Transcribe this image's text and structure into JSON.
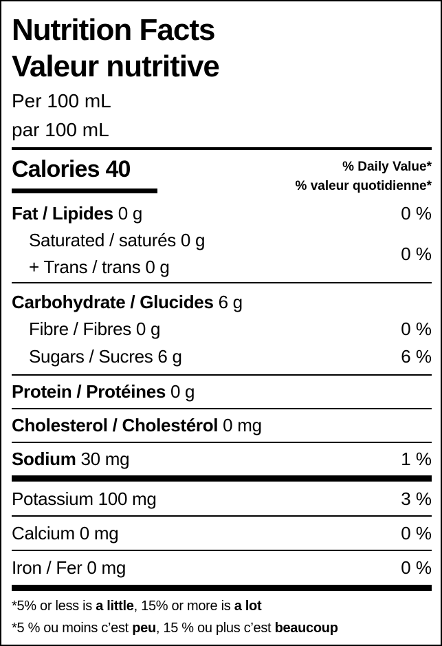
{
  "title_en": "Nutrition Facts",
  "title_fr": "Valeur nutritive",
  "serving_en": "Per 100 mL",
  "serving_fr": "par 100 mL",
  "calories_label": "Calories",
  "calories_value": "40",
  "dv_header_en": "% Daily Value*",
  "dv_header_fr": "% valeur quotidienne*",
  "rows": {
    "fat": {
      "label": "Fat / Lipides",
      "amount": "0 g",
      "dv": "0 %"
    },
    "saturated": {
      "label": "Saturated / saturés",
      "amount": "0 g"
    },
    "trans": {
      "label": "+ Trans / trans",
      "amount": "0 g"
    },
    "sat_trans_dv": "0 %",
    "carb": {
      "label": "Carbohydrate / Glucides",
      "amount": "6 g"
    },
    "fibre": {
      "label": "Fibre / Fibres",
      "amount": "0 g",
      "dv": "0 %"
    },
    "sugars": {
      "label": "Sugars / Sucres",
      "amount": "6 g",
      "dv": "6 %"
    },
    "protein": {
      "label": "Protein / Protéines",
      "amount": "0 g"
    },
    "cholesterol": {
      "label": "Cholesterol / Cholestérol",
      "amount": "0 mg"
    },
    "sodium": {
      "label": "Sodium",
      "amount": "30 mg",
      "dv": "1 %"
    },
    "potassium": {
      "label": "Potassium",
      "amount": "100 mg",
      "dv": "3 %"
    },
    "calcium": {
      "label": "Calcium",
      "amount": "0 mg",
      "dv": "0 %"
    },
    "iron": {
      "label": "Iron / Fer",
      "amount": "0 mg",
      "dv": "0 %"
    }
  },
  "footnote": {
    "en_1": "*5% or less is ",
    "en_2": "a little",
    "en_3": ", 15% or more is ",
    "en_4": "a lot",
    "fr_1": "*5 % ou moins c’est ",
    "fr_2": "peu",
    "fr_3": ", 15 % ou plus c’est ",
    "fr_4": "beaucoup"
  }
}
